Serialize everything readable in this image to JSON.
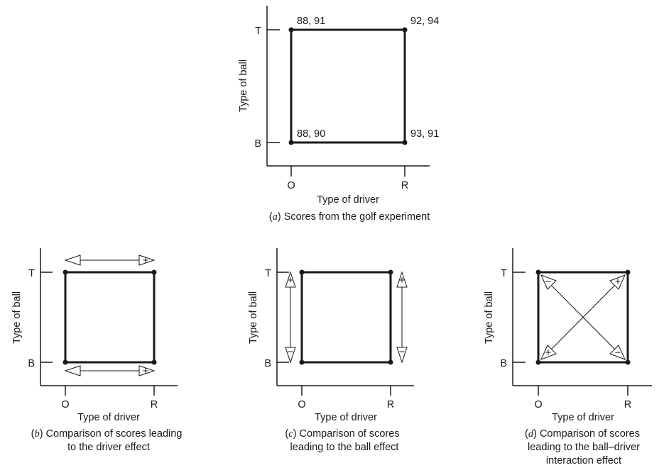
{
  "panel_a": {
    "y_tick_top": "T",
    "y_tick_bottom": "B",
    "x_tick_left": "O",
    "x_tick_right": "R",
    "ylabel": "Type of ball",
    "xlabel": "Type of driver",
    "score_TO": "88, 91",
    "score_TR": "92, 94",
    "score_BO": "88, 90",
    "score_BR": "93, 91",
    "caption_letter": "a",
    "caption_text": "Scores from the golf experiment"
  },
  "panel_b": {
    "y_tick_top": "T",
    "y_tick_bottom": "B",
    "x_tick_left": "O",
    "x_tick_right": "R",
    "ylabel": "Type of ball",
    "xlabel": "Type of driver",
    "caption_letter": "b",
    "caption_line1": "Comparison of scores leading",
    "caption_line2": "to the driver effect"
  },
  "panel_c": {
    "y_tick_top": "T",
    "y_tick_bottom": "B",
    "x_tick_left": "O",
    "x_tick_right": "R",
    "ylabel": "Type of ball",
    "xlabel": "Type of driver",
    "caption_letter": "c",
    "caption_line1": "Comparison of scores",
    "caption_line2": "leading to the ball effect"
  },
  "panel_d": {
    "y_tick_top": "T",
    "y_tick_bottom": "B",
    "x_tick_left": "O",
    "x_tick_right": "R",
    "ylabel": "Type of ball",
    "xlabel": "Type of driver",
    "caption_letter": "d",
    "caption_line1": "Comparison of scores",
    "caption_line2": "leading to the ball–driver",
    "caption_line3": "interaction effect"
  },
  "signs": {
    "plus": "+",
    "minus": "−"
  }
}
